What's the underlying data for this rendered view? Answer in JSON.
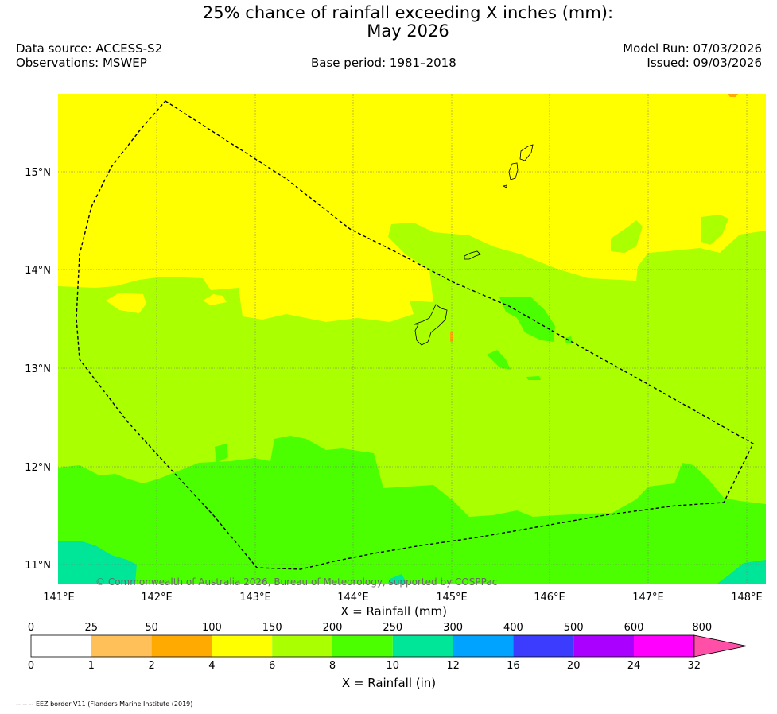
{
  "title": {
    "line1": "25% chance of rainfall exceeding X inches (mm):",
    "line2": "May 2026"
  },
  "header": {
    "data_source": "Data source: ACCESS-S2",
    "observations": "Observations: MSWEP",
    "base_period": "Base period: 1981–2018",
    "model_run": "Model Run: 07/03/2026",
    "issued": "Issued: 09/03/2026"
  },
  "map": {
    "lat_labels": [
      "15°N",
      "14°N",
      "13°N",
      "12°N",
      "11°N"
    ],
    "lon_labels": [
      "141°E",
      "142°E",
      "143°E",
      "144°E",
      "145°E",
      "146°E",
      "147°E",
      "148°E"
    ],
    "copyright": "© Commonwealth of Australia 2026, Bureau of Meteorology, supported by COSPPac",
    "grid": true
  },
  "colorbar": {
    "mm_label": "X = Rainfall (mm)",
    "in_label": "X = Rainfall (in)",
    "mm_ticks": [
      "0",
      "25",
      "50",
      "100",
      "150",
      "200",
      "250",
      "300",
      "400",
      "500",
      "600",
      "800"
    ],
    "in_ticks": [
      "0",
      "1",
      "2",
      "4",
      "6",
      "8",
      "10",
      "12",
      "16",
      "20",
      "24",
      "32"
    ],
    "colors": [
      "#ffffff",
      "#ffc05a",
      "#ffaa00",
      "#ffff00",
      "#aaff00",
      "#4cff00",
      "#00e699",
      "#00a3ff",
      "#3c3cff",
      "#aa00ff",
      "#ff00ff",
      "#ff4fa6"
    ]
  },
  "footnote": "-- -- -- EEZ border V11 (Flanders Marine Institute (2019)"
}
